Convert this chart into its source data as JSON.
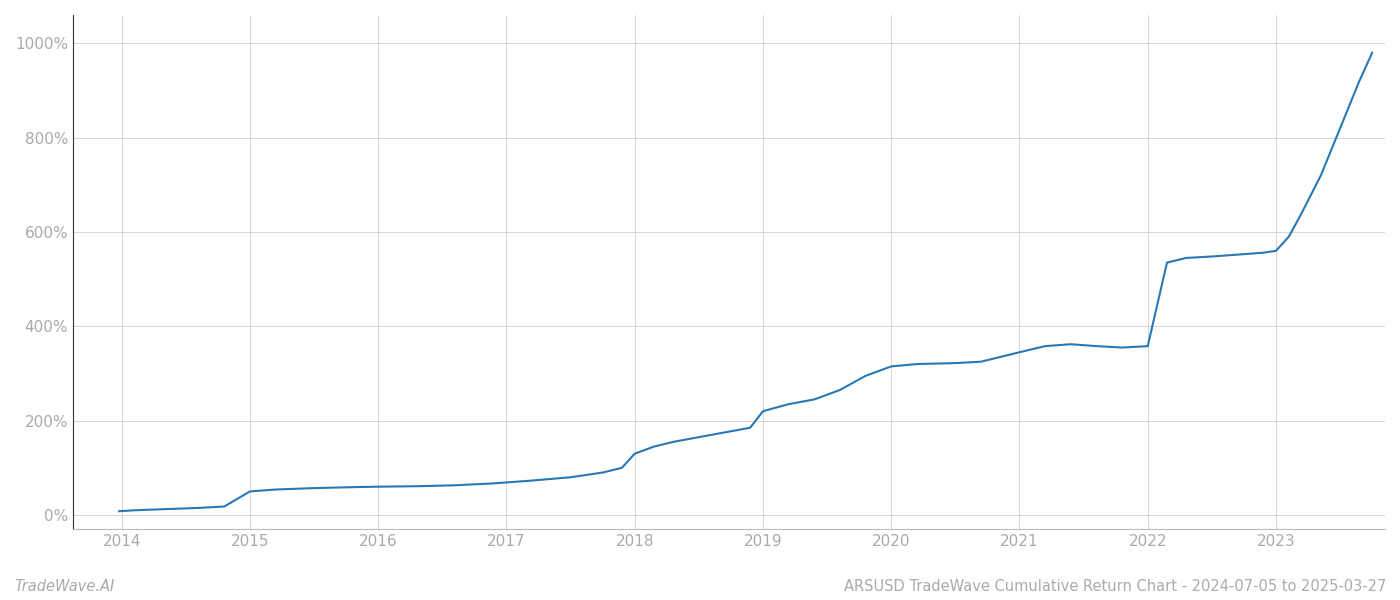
{
  "title": "ARSUSD TradeWave Cumulative Return Chart - 2024-07-05 to 2025-03-27",
  "watermark": "TradeWave.AI",
  "line_color": "#2878b5",
  "background_color": "#ffffff",
  "grid_color": "#d0d0d0",
  "x_tick_labels": [
    "2014",
    "2015",
    "2016",
    "2017",
    "2018",
    "2019",
    "2020",
    "2021",
    "2022",
    "2023"
  ],
  "ylim": [
    -30,
    1060
  ],
  "xlim": [
    2013.62,
    2023.85
  ],
  "data_points": [
    {
      "year": 2013.98,
      "value": 8
    },
    {
      "year": 2014.1,
      "value": 10
    },
    {
      "year": 2014.3,
      "value": 12
    },
    {
      "year": 2014.6,
      "value": 15
    },
    {
      "year": 2014.8,
      "value": 18
    },
    {
      "year": 2015.0,
      "value": 50
    },
    {
      "year": 2015.2,
      "value": 54
    },
    {
      "year": 2015.5,
      "value": 57
    },
    {
      "year": 2015.8,
      "value": 59
    },
    {
      "year": 2016.0,
      "value": 60
    },
    {
      "year": 2016.3,
      "value": 61
    },
    {
      "year": 2016.6,
      "value": 63
    },
    {
      "year": 2016.9,
      "value": 67
    },
    {
      "year": 2017.2,
      "value": 73
    },
    {
      "year": 2017.5,
      "value": 80
    },
    {
      "year": 2017.75,
      "value": 90
    },
    {
      "year": 2017.9,
      "value": 100
    },
    {
      "year": 2018.0,
      "value": 130
    },
    {
      "year": 2018.15,
      "value": 145
    },
    {
      "year": 2018.3,
      "value": 155
    },
    {
      "year": 2018.5,
      "value": 165
    },
    {
      "year": 2018.7,
      "value": 175
    },
    {
      "year": 2018.9,
      "value": 185
    },
    {
      "year": 2019.0,
      "value": 220
    },
    {
      "year": 2019.2,
      "value": 235
    },
    {
      "year": 2019.4,
      "value": 245
    },
    {
      "year": 2019.6,
      "value": 265
    },
    {
      "year": 2019.8,
      "value": 295
    },
    {
      "year": 2020.0,
      "value": 315
    },
    {
      "year": 2020.2,
      "value": 320
    },
    {
      "year": 2020.5,
      "value": 322
    },
    {
      "year": 2020.7,
      "value": 325
    },
    {
      "year": 2021.0,
      "value": 345
    },
    {
      "year": 2021.2,
      "value": 358
    },
    {
      "year": 2021.4,
      "value": 362
    },
    {
      "year": 2021.6,
      "value": 358
    },
    {
      "year": 2021.8,
      "value": 355
    },
    {
      "year": 2022.0,
      "value": 358
    },
    {
      "year": 2022.15,
      "value": 535
    },
    {
      "year": 2022.3,
      "value": 545
    },
    {
      "year": 2022.5,
      "value": 548
    },
    {
      "year": 2022.7,
      "value": 552
    },
    {
      "year": 2022.9,
      "value": 556
    },
    {
      "year": 2023.0,
      "value": 560
    },
    {
      "year": 2023.1,
      "value": 590
    },
    {
      "year": 2023.2,
      "value": 640
    },
    {
      "year": 2023.35,
      "value": 720
    },
    {
      "year": 2023.5,
      "value": 820
    },
    {
      "year": 2023.65,
      "value": 920
    },
    {
      "year": 2023.75,
      "value": 980
    }
  ],
  "figsize": [
    14.0,
    6.0
  ],
  "dpi": 100,
  "line_width": 1.5,
  "title_fontsize": 10.5,
  "watermark_fontsize": 10.5,
  "tick_fontsize": 11,
  "tick_color": "#aaaaaa",
  "label_color": "#888888",
  "spine_color": "#bbbbbb",
  "left_spine_color": "#333333"
}
